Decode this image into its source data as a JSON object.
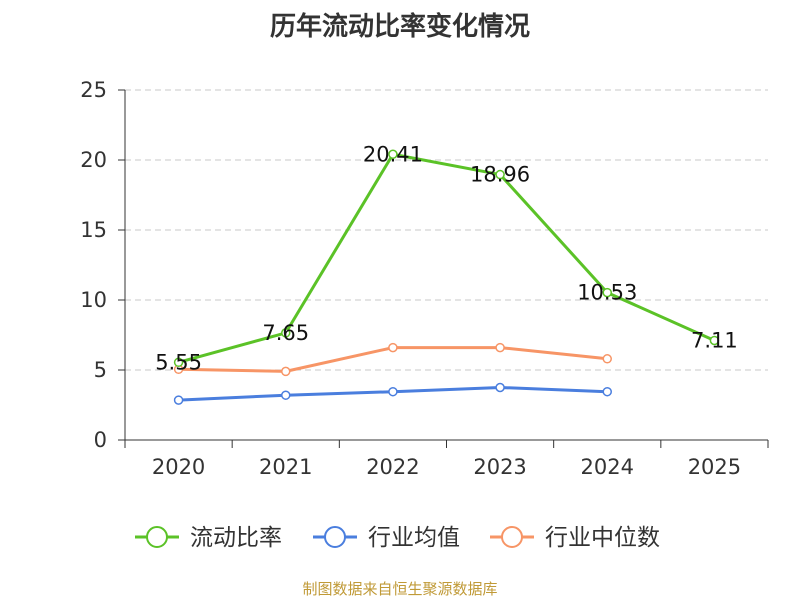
{
  "chart_data": {
    "type": "line",
    "title": "历年流动比率变化情况",
    "categories": [
      "2020",
      "2021",
      "2022",
      "2023",
      "2024",
      "2025"
    ],
    "ylim": [
      0,
      25
    ],
    "yticks": [
      0,
      5,
      10,
      15,
      20,
      25
    ],
    "grid": true,
    "legend_position": "bottom",
    "series": [
      {
        "name": "流动比率",
        "color": "#5bc227",
        "values": [
          5.55,
          7.65,
          20.41,
          18.96,
          10.53,
          7.11
        ],
        "labels": [
          "5.55",
          "7.65",
          "20.41",
          "18.96",
          "10.53",
          "7.11"
        ]
      },
      {
        "name": "行业均值",
        "color": "#4a7ede",
        "values": [
          2.85,
          3.2,
          3.45,
          3.75,
          3.45,
          null
        ]
      },
      {
        "name": "行业中位数",
        "color": "#f79566",
        "values": [
          5.05,
          4.9,
          6.6,
          6.6,
          5.8,
          null
        ]
      }
    ]
  },
  "source_text": "制图数据来自恒生聚源数据库",
  "source_color": "#c09a37"
}
